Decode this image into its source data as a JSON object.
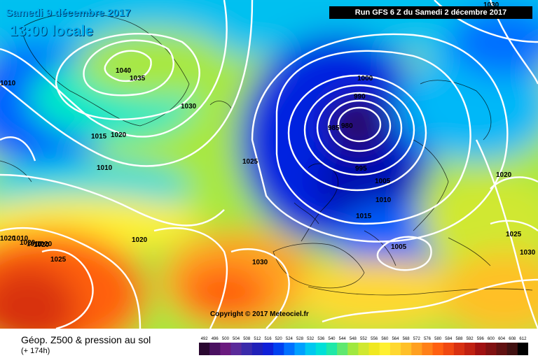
{
  "header": {
    "date": "Samedi 9 décembre 2017",
    "time": "13:00 locale",
    "run": "Run GFS 6 Z du Samedi 2 décembre 2017"
  },
  "map": {
    "lows": [
      {
        "label": "980",
        "value": 980
      },
      {
        "label": "985",
        "value": 985
      },
      {
        "label": "990",
        "value": 990
      },
      {
        "label": "995",
        "value": 995
      },
      {
        "label": "1000",
        "value": 1000
      },
      {
        "label": "1005",
        "value": 1005
      },
      {
        "label": "1010",
        "value": 1010
      },
      {
        "label": "1015",
        "value": 1015
      }
    ],
    "isobar_labels": [
      "1040",
      "1035",
      "1030",
      "1015",
      "1020",
      "1010",
      "1025",
      "1020",
      "1025",
      "1030",
      "1010",
      "1020",
      "1025",
      "1030",
      "1020",
      "1005",
      "1010",
      "1030",
      "1020",
      "1020",
      "1010",
      "1020"
    ],
    "copyright": "Copyright © 2017 Meteociel.fr"
  },
  "footer": {
    "title": "Géop. Z500 & pression au sol",
    "lead": "(+ 174h)"
  },
  "legend": {
    "ticks": [
      "492",
      "496",
      "500",
      "504",
      "508",
      "512",
      "516",
      "520",
      "524",
      "528",
      "532",
      "536",
      "540",
      "544",
      "548",
      "552",
      "556",
      "560",
      "564",
      "568",
      "572",
      "576",
      "580",
      "584",
      "588",
      "592",
      "596",
      "600",
      "604",
      "608",
      "612"
    ],
    "colors": [
      "#2a0830",
      "#4a1060",
      "#6a1a7e",
      "#5a2a9a",
      "#3a2aaa",
      "#2020b8",
      "#0f1fd8",
      "#0040f0",
      "#0070ff",
      "#00a0ff",
      "#00c8f0",
      "#00e0d8",
      "#20e8a8",
      "#60e870",
      "#a0e840",
      "#d0e830",
      "#f0e820",
      "#fff030",
      "#ffd830",
      "#ffc028",
      "#ffa020",
      "#ff8018",
      "#ff6010",
      "#f04810",
      "#d83010",
      "#c02010",
      "#a01010",
      "#801010",
      "#601010",
      "#401010",
      "#000000"
    ]
  }
}
